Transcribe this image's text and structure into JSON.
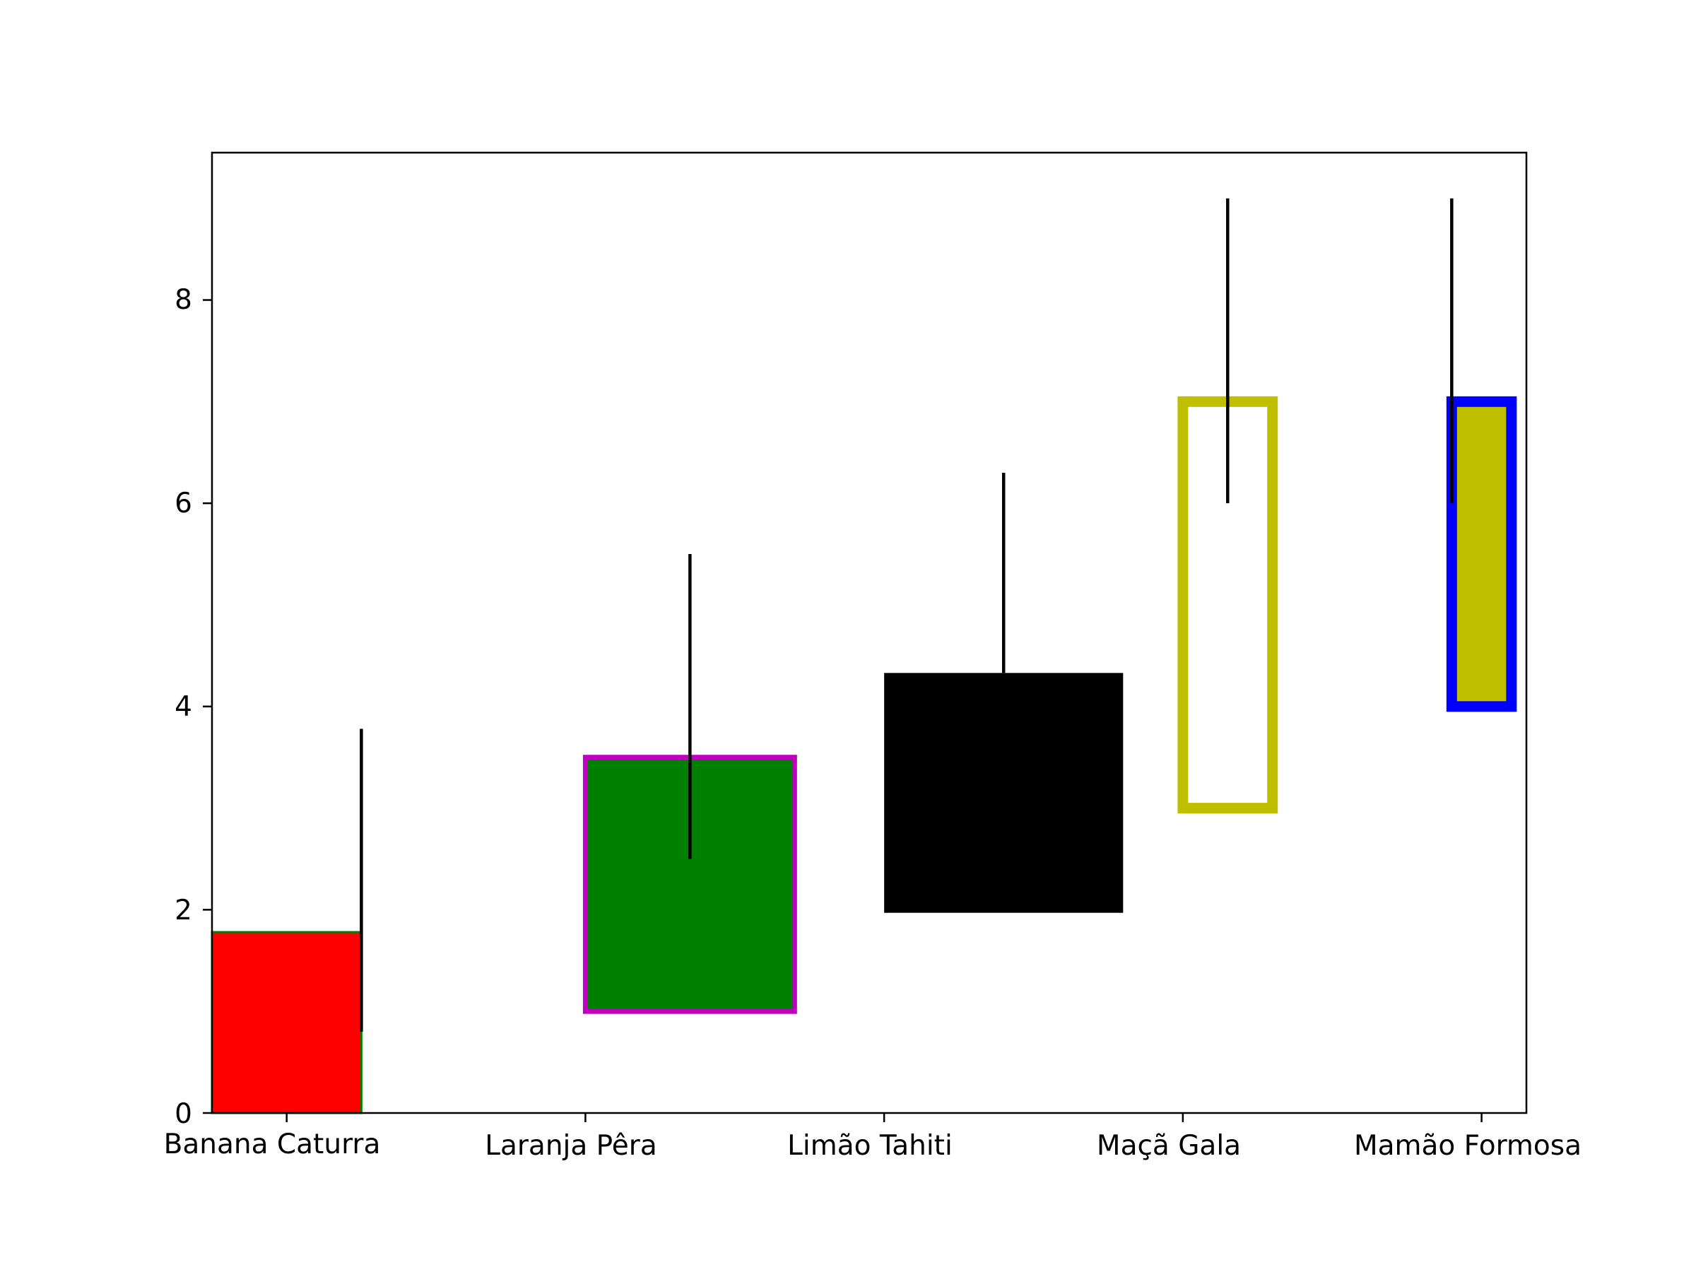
{
  "chart_data": {
    "type": "bar",
    "title": "",
    "xlabel": "",
    "ylabel": "",
    "ylim": [
      0,
      9.45
    ],
    "grid": false,
    "legend": "none",
    "yticks": [
      0,
      2,
      4,
      6,
      8
    ],
    "y_tick_labels": [
      "0",
      "2",
      "4",
      "6",
      "8"
    ],
    "categories": [
      "Banana Caturra",
      "Laranja Pêra",
      "Limão Tahiti",
      "Maçã Gala",
      "Mamão Formosa"
    ],
    "bars": [
      {
        "category": "Banana Caturra",
        "bottom": 0,
        "top": 1.78,
        "width": 0.5,
        "offset": -0.25,
        "fill": "#ff0000",
        "edge": "#008000",
        "edge_weight": "thin"
      },
      {
        "category": "Laranja Pêra",
        "bottom": 1.0,
        "top": 3.5,
        "width": 0.7,
        "offset": 0.35,
        "fill": "#008000",
        "edge": "#bf00bf",
        "edge_weight": "medium"
      },
      {
        "category": "Limão Tahiti",
        "bottom": 1.97,
        "top": 4.33,
        "width": 0.8,
        "offset": 0.4,
        "fill": "#000000",
        "edge": "#000000",
        "edge_weight": "none"
      },
      {
        "category": "Maçã Gala",
        "bottom": 3.0,
        "top": 7.0,
        "width": 0.3,
        "offset": 0.15,
        "fill": "none",
        "edge": "#bfbf00",
        "edge_weight": "thick"
      },
      {
        "category": "Mamão Formosa",
        "bottom": 4.0,
        "top": 7.0,
        "width": 0.2,
        "offset": -0.1,
        "fill": "#bfbf00",
        "edge": "#0000ff",
        "edge_weight": "thick"
      }
    ],
    "error_bars": [
      {
        "category": "Banana Caturra",
        "x_offset": 0.25,
        "low": 0.8,
        "high": 3.78
      },
      {
        "category": "Laranja Pêra",
        "x_offset": 0.35,
        "low": 2.5,
        "high": 5.5
      },
      {
        "category": "Limão Tahiti",
        "x_offset": 0.4,
        "low": 4.33,
        "high": 6.3
      },
      {
        "category": "Maçã Gala",
        "x_offset": 0.15,
        "low": 6.0,
        "high": 9.0
      },
      {
        "category": "Mamão Formosa",
        "x_offset": -0.1,
        "low": 6.0,
        "high": 9.0
      }
    ]
  }
}
